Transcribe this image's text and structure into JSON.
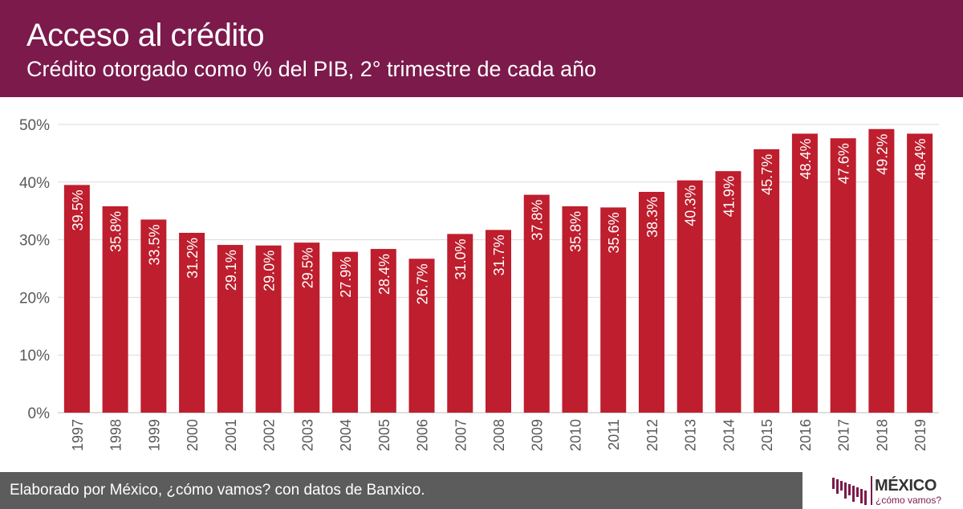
{
  "header": {
    "title": "Acceso al crédito",
    "subtitle": "Crédito otorgado como % del PIB, 2° trimestre de cada año"
  },
  "footer": {
    "source": "Elaborado por México, ¿cómo vamos? con datos de Banxico."
  },
  "logo": {
    "name": "MÉXICO",
    "tagline": "¿cómo vamos?"
  },
  "colors": {
    "header_bg": "#7b1a4b",
    "bar": "#be1e2d",
    "footer_bg": "#5c5c5c",
    "axis_text": "#595959",
    "grid": "#d9d9d9"
  },
  "chart_data": {
    "type": "bar",
    "title": "Acceso al crédito",
    "subtitle": "Crédito otorgado como % del PIB, 2° trimestre de cada año",
    "categories": [
      "1997",
      "1998",
      "1999",
      "2000",
      "2001",
      "2002",
      "2003",
      "2004",
      "2005",
      "2006",
      "2007",
      "2008",
      "2009",
      "2010",
      "2011",
      "2012",
      "2013",
      "2014",
      "2015",
      "2016",
      "2017",
      "2018",
      "2019"
    ],
    "values": [
      39.5,
      35.8,
      33.5,
      31.2,
      29.1,
      29.0,
      29.5,
      27.9,
      28.4,
      26.7,
      31.0,
      31.7,
      37.8,
      35.8,
      35.6,
      38.3,
      40.3,
      41.9,
      45.7,
      48.4,
      47.6,
      49.2,
      48.4
    ],
    "labels": [
      "39.5%",
      "35.8%",
      "33.5%",
      "31.2%",
      "29.1%",
      "29.0%",
      "29.5%",
      "27.9%",
      "28.4%",
      "26.7%",
      "31.0%",
      "31.7%",
      "37.8%",
      "35.8%",
      "35.6%",
      "38.3%",
      "40.3%",
      "41.9%",
      "45.7%",
      "48.4%",
      "47.6%",
      "49.2%",
      "48.4%"
    ],
    "ylim": [
      0,
      50
    ],
    "yticks": [
      0,
      10,
      20,
      30,
      40,
      50
    ],
    "ytick_labels": [
      "0%",
      "10%",
      "20%",
      "30%",
      "40%",
      "50%"
    ],
    "grid": true,
    "xlabel": "",
    "ylabel": ""
  }
}
